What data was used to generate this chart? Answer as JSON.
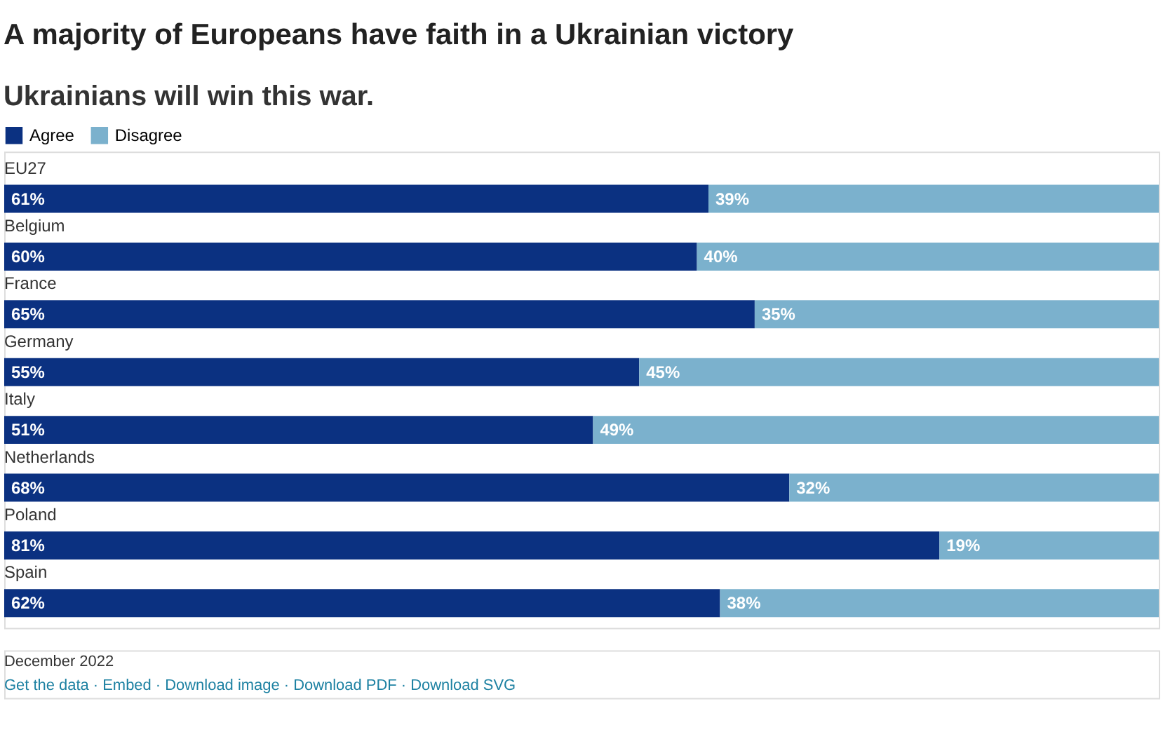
{
  "chart_data": {
    "type": "bar",
    "orientation": "horizontal",
    "stacked": true,
    "title": "A majority of Europeans have faith in a Ukrainian victory",
    "subtitle": "Ukrainians will win this war.",
    "categories": [
      "EU27",
      "Belgium",
      "France",
      "Germany",
      "Italy",
      "Netherlands",
      "Poland",
      "Spain"
    ],
    "series": [
      {
        "name": "Agree",
        "color": "#0b3181",
        "values": [
          61,
          60,
          65,
          55,
          51,
          68,
          81,
          62
        ],
        "value_labels": [
          "61%",
          "60%",
          "65%",
          "55%",
          "51%",
          "68%",
          "81%",
          "62%"
        ]
      },
      {
        "name": "Disagree",
        "color": "#7bb1cd",
        "values": [
          39,
          40,
          35,
          45,
          49,
          32,
          19,
          38
        ],
        "value_labels": [
          "39%",
          "40%",
          "35%",
          "45%",
          "49%",
          "32%",
          "19%",
          "38%"
        ]
      }
    ],
    "legend": "top left",
    "annotations": [
      "December 2022",
      "Get the data · Embed · Download image · Download PDF · Download SVG"
    ]
  }
}
